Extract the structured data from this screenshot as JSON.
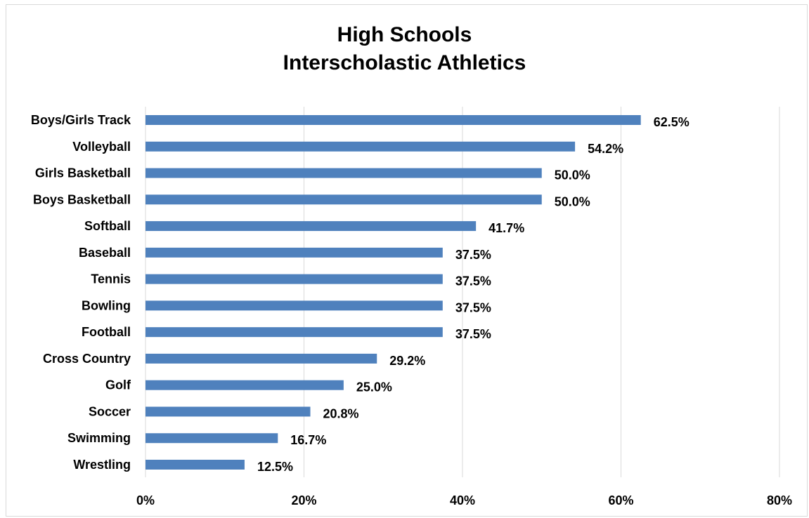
{
  "chart_data": {
    "type": "bar",
    "orientation": "horizontal",
    "title": [
      "High Schools",
      "Interscholastic Athletics"
    ],
    "categories": [
      "Boys/Girls Track",
      "Volleyball",
      "Girls Basketball",
      "Boys Basketball",
      "Softball",
      "Baseball",
      "Tennis",
      "Bowling",
      "Football",
      "Cross Country",
      "Golf",
      "Soccer",
      "Swimming",
      "Wrestling"
    ],
    "values": [
      62.5,
      54.2,
      50.0,
      50.0,
      41.7,
      37.5,
      37.5,
      37.5,
      37.5,
      29.2,
      25.0,
      20.8,
      16.7,
      12.5
    ],
    "value_labels": [
      "62.5%",
      "54.2%",
      "50.0%",
      "50.0%",
      "41.7%",
      "37.5%",
      "37.5%",
      "37.5%",
      "37.5%",
      "29.2%",
      "25.0%",
      "20.8%",
      "16.7%",
      "12.5%"
    ],
    "xlim": [
      0,
      80
    ],
    "x_ticks": [
      0,
      20,
      40,
      60,
      80
    ],
    "x_tick_labels": [
      "0%",
      "20%",
      "40%",
      "60%",
      "80%"
    ],
    "xlabel": "",
    "ylabel": "",
    "grid": true,
    "legend": "none",
    "colors": {
      "bar": "#4f81bd",
      "grid": "#d9d9d9"
    }
  }
}
